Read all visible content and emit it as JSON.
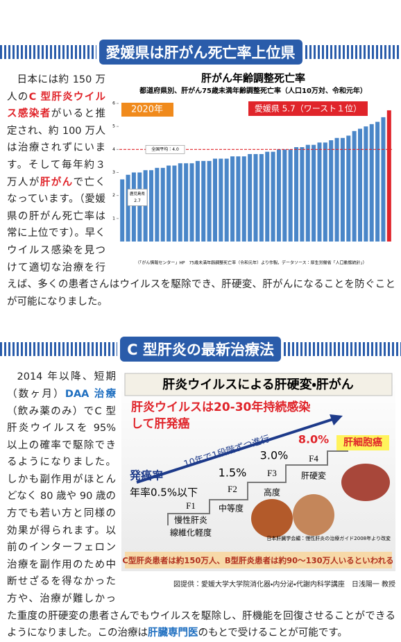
{
  "sections": [
    {
      "heading": "愛媛県は肝がん死亡率上位県",
      "paragraph": [
        {
          "text": "日本には約 150 万人の",
          "style": "plain"
        },
        {
          "text": "C 型肝炎ウイルス感染者",
          "style": "red"
        },
        {
          "text": "がいると推定され、約 100 万人は治療されずにいます。そして毎年約３万人が",
          "style": "plain"
        },
        {
          "text": "肝がん",
          "style": "red"
        },
        {
          "text": "で亡くなっています。（愛媛県の肝がん死亡率は常に上位です）。早くウイルス感染を見つけて適切な治療を行えば、多くの患者さんはウイルスを駆除でき、肝硬変、肝がんになることを防ぐことが可能になりました。",
          "style": "plain"
        }
      ]
    },
    {
      "heading": "C 型肝炎の最新治療法",
      "paragraph": [
        {
          "text": "2014 年以降、短期（数ヶ月）",
          "style": "plain"
        },
        {
          "text": "DAA 治療",
          "style": "blue"
        },
        {
          "text": "（飲み薬のみ）でC 型肝炎ウイルスを 95% 以上の確率で駆除できるようになりました。しかも副作用がほとんどなく 80 歳や 90 歳の方でも若い方と同様の効果が得られます。以前のインターフェロン治療を副作用のため中断せざるを得なかった方や、治療が難しかった重度の肝硬変の患者さんでもウイルスを駆除し、肝機能を回復させることができるようになりました。この治療は",
          "style": "plain"
        },
        {
          "text": "肝臓専門医",
          "style": "blue"
        },
        {
          "text": "のもとで受けることが可能です。",
          "style": "plain"
        }
      ]
    }
  ],
  "chart_data": {
    "type": "bar",
    "title": "肝がん年齢調整死亡率",
    "subtitle": "都道府県別、肝がん75歳未満年齢調整死亡率（人口10万対、令和元年）",
    "year_label": "2020年",
    "values": [
      2.7,
      2.9,
      3.0,
      3.0,
      3.1,
      3.1,
      3.2,
      3.2,
      3.3,
      3.3,
      3.4,
      3.4,
      3.4,
      3.5,
      3.5,
      3.5,
      3.6,
      3.6,
      3.6,
      3.7,
      3.7,
      3.7,
      3.8,
      3.8,
      3.8,
      3.9,
      3.9,
      4.0,
      4.0,
      4.0,
      4.1,
      4.1,
      4.2,
      4.2,
      4.3,
      4.3,
      4.4,
      4.5,
      4.5,
      4.6,
      4.8,
      4.9,
      5.0,
      5.1,
      5.2,
      5.4,
      5.7
    ],
    "color": "#4a86c8",
    "highlight": {
      "label": "愛媛県 5.7（ワースト１位）",
      "color": "#e0242a"
    },
    "average": {
      "label": "全国平均：4.0",
      "value": 4,
      "color": "#e0242a"
    },
    "callout": {
      "label": "鹿児島県",
      "value": 2.7
    },
    "ylim": [
      0,
      6
    ],
    "yticks": [
      1,
      2,
      3,
      4,
      5,
      6
    ],
    "grid": false,
    "source": "（「がん情報センター」HP　75歳未満年齢調整死亡率（令和元年）より作製。データソース：厚生労働省「人口動態統計」）"
  },
  "diagram": {
    "title": "肝炎ウイルスによる肝硬変・肝がん",
    "headline": [
      "肝炎ウイルスは20-30年持続感染",
      "して肝発癌"
    ],
    "arrow_label": "10年で1段階ずつ進行",
    "rate_label": "発癌率",
    "rate_value": "年率0.5%以下",
    "stages": [
      {
        "stage": "F1",
        "desc": [
          "慢性肝炎",
          "線維化軽度"
        ]
      },
      {
        "stage": "F2",
        "rate": "1.5%",
        "desc": [
          "中等度"
        ]
      },
      {
        "stage": "F3",
        "rate": "3.0%",
        "desc": [
          "高度"
        ]
      },
      {
        "stage": "F4",
        "rate": "8.0%",
        "desc": [
          "肝硬変"
        ]
      }
    ],
    "cancer": "肝細胞癌",
    "reference": "日本肝臓学会編：慢性肝炎の治療ガイド2008年より改変",
    "footer": "C型肝炎患者は約150万人、B型肝炎患者は約90〜130万人いるといわれる",
    "credit": "図提供：愛媛大学大学院消化器・内分泌・代謝内科学講座　日浅陽一 教授"
  }
}
